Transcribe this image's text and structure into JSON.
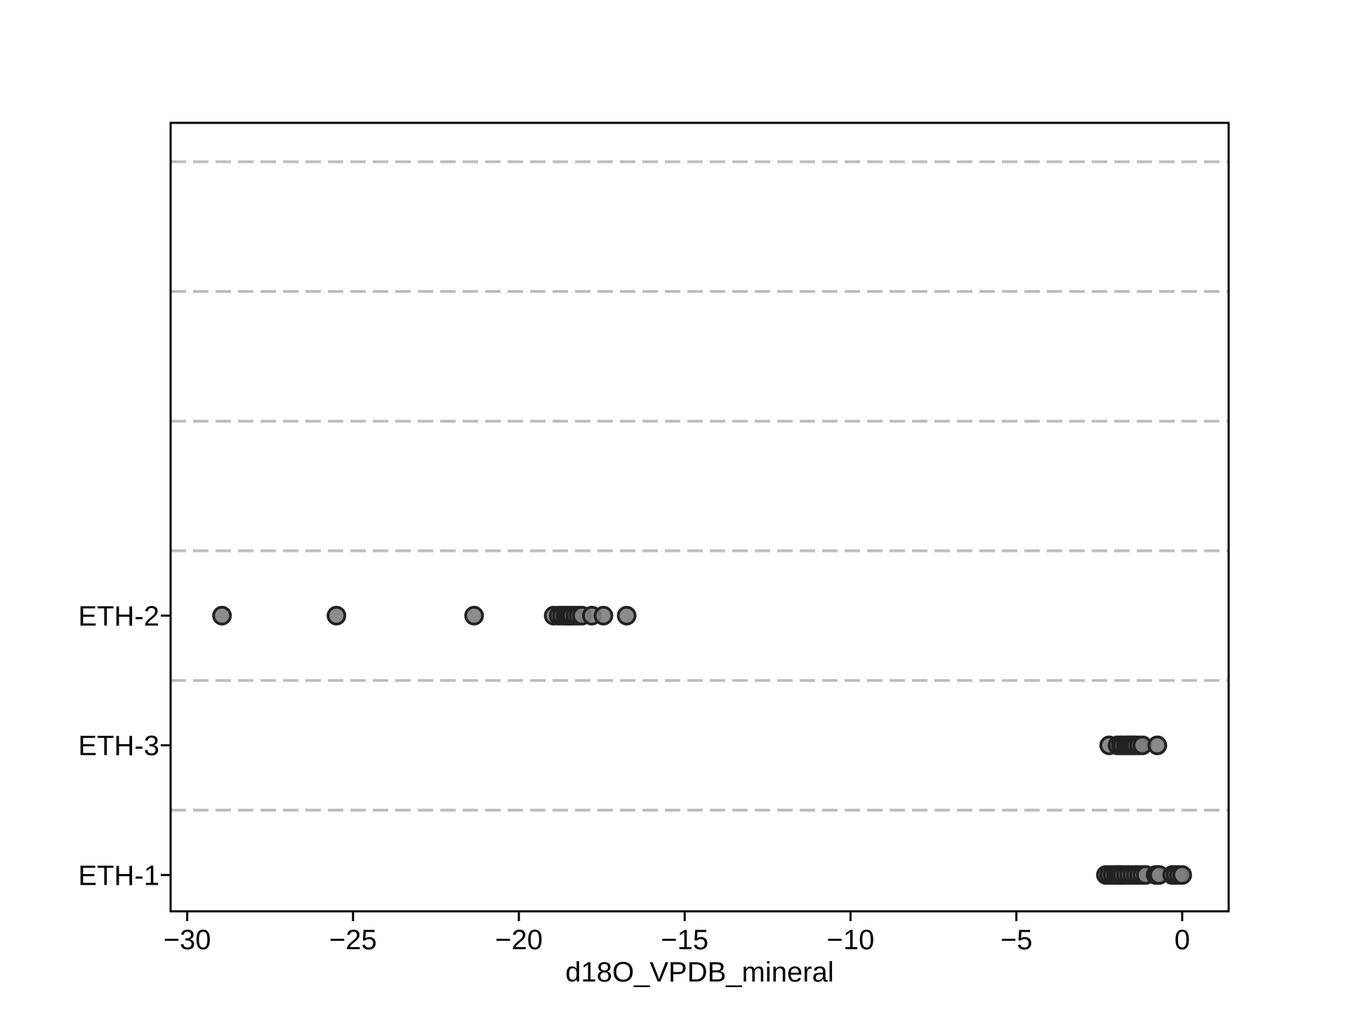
{
  "chart_data": {
    "type": "scatter",
    "title": "",
    "xlabel": "d18O_VPDB_mineral",
    "ylabel": "",
    "xlim": [
      -30.5,
      1.4
    ],
    "x_ticks": [
      -30,
      -25,
      -20,
      -15,
      -10,
      -5,
      0
    ],
    "x_tick_labels": [
      "−30",
      "−25",
      "−20",
      "−15",
      "−10",
      "−5",
      "0"
    ],
    "categories": [
      "ETH-1",
      "ETH-3",
      "ETH-2"
    ],
    "category_positions": [
      0,
      1,
      2
    ],
    "ylim": [
      -0.28,
      5.8
    ],
    "grid_lines_y": [
      0.5,
      1.5,
      2.5,
      3.5,
      4.5,
      5.5
    ],
    "grid": "dashed horizontal separators",
    "legend": "none",
    "marker_fill": "#808080",
    "marker_edge": "#222222",
    "series": [
      {
        "category": "ETH-1",
        "x": [
          -2.3,
          -2.2,
          -2.1,
          -2.0,
          -1.95,
          -1.9,
          -1.85,
          -1.8,
          -1.7,
          -1.6,
          -1.5,
          -1.4,
          -1.3,
          -1.2,
          -1.1,
          -0.8,
          -0.75,
          -0.7,
          -0.3,
          -0.2,
          -0.1,
          0.0
        ]
      },
      {
        "category": "ETH-3",
        "x": [
          -2.2,
          -1.95,
          -1.85,
          -1.8,
          -1.7,
          -1.65,
          -1.6,
          -1.55,
          -1.5,
          -1.45,
          -1.4,
          -1.3,
          -1.2,
          -0.75
        ]
      },
      {
        "category": "ETH-2",
        "x": [
          -28.95,
          -25.5,
          -21.35,
          -18.95,
          -18.8,
          -18.7,
          -18.6,
          -18.55,
          -18.5,
          -18.45,
          -18.4,
          -18.3,
          -18.2,
          -18.1,
          -17.8,
          -17.45,
          -16.75
        ]
      }
    ]
  }
}
